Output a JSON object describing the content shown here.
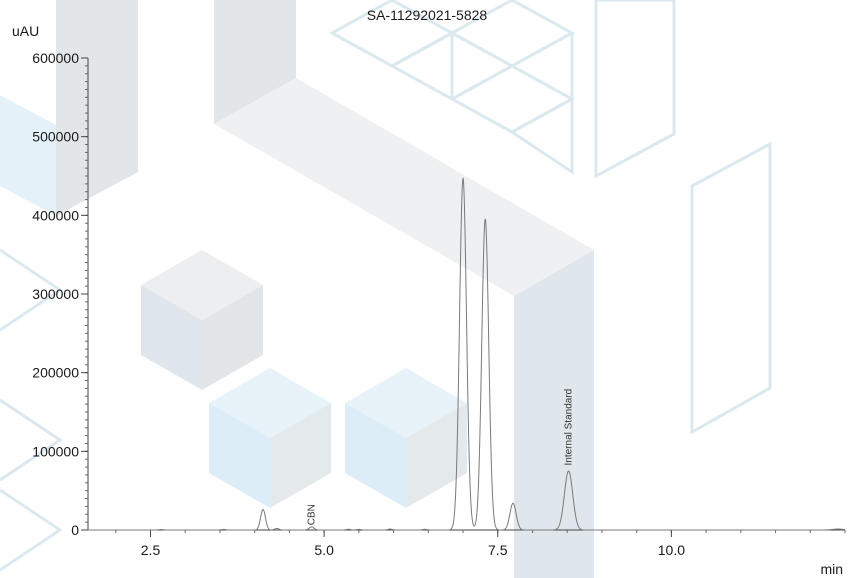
{
  "chart_data": {
    "type": "line",
    "title": "SA-11292021-5828",
    "xlabel": "min",
    "ylabel": "uAU",
    "xlim": [
      1.6,
      12.5
    ],
    "ylim": [
      0,
      600000
    ],
    "x_ticks": [
      2.5,
      5.0,
      7.5,
      10.0
    ],
    "x_tick_labels": [
      "2.5",
      "5.0",
      "7.5",
      "10.0"
    ],
    "y_ticks": [
      0,
      100000,
      200000,
      300000,
      400000,
      500000,
      600000
    ],
    "y_tick_labels": [
      "0",
      "100000",
      "200000",
      "300000",
      "400000",
      "500000",
      "600000"
    ],
    "grid": false,
    "legend": "none",
    "series_color": "#7a7a7a",
    "peaks": [
      {
        "rt": 2.65,
        "height": 600,
        "width": 0.03
      },
      {
        "rt": 3.55,
        "height": 800,
        "width": 0.03
      },
      {
        "rt": 4.12,
        "height": 26000,
        "width": 0.035
      },
      {
        "rt": 4.32,
        "height": 2000,
        "width": 0.03
      },
      {
        "rt": 4.82,
        "height": 4000,
        "width": 0.035
      },
      {
        "rt": 5.35,
        "height": 900,
        "width": 0.03
      },
      {
        "rt": 5.5,
        "height": 800,
        "width": 0.03
      },
      {
        "rt": 5.95,
        "height": 1200,
        "width": 0.03
      },
      {
        "rt": 6.45,
        "height": 900,
        "width": 0.03
      },
      {
        "rt": 7.0,
        "height": 447000,
        "width": 0.05
      },
      {
        "rt": 7.32,
        "height": 395000,
        "width": 0.05
      },
      {
        "rt": 7.72,
        "height": 34000,
        "width": 0.045
      },
      {
        "rt": 8.52,
        "height": 75000,
        "width": 0.06
      },
      {
        "rt": 12.4,
        "height": 1200,
        "width": 0.08
      }
    ],
    "peak_labels": [
      {
        "text": "CBN",
        "rt": 4.82,
        "y": 6000
      },
      {
        "text": "Internal Standard",
        "rt": 8.52,
        "y": 82000
      }
    ]
  },
  "background_colors": {
    "light_gray": "#eef0f1",
    "mid_gray": "#e2e6e9",
    "blue_gray": "#dfe7ec",
    "light_blue": "#e4f1f8",
    "outline": "#dbe8ee"
  }
}
